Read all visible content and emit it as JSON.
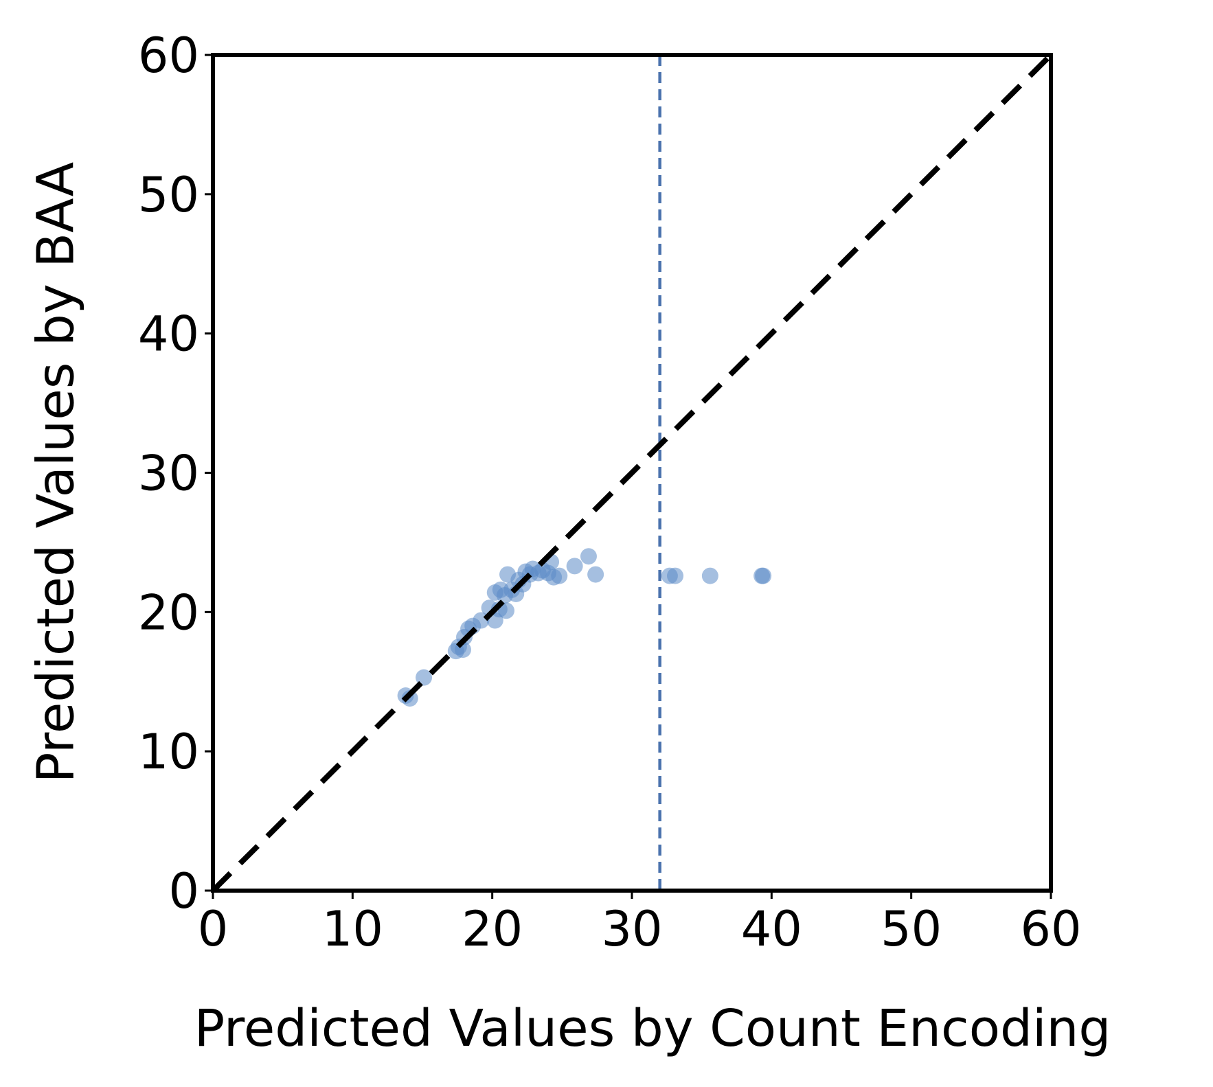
{
  "chart_data": {
    "type": "scatter",
    "title": "",
    "xlabel": "Predicted Values by Count Encoding",
    "ylabel": "Predicted Values by BAA",
    "xlim": [
      0,
      60
    ],
    "ylim": [
      0,
      60
    ],
    "x_ticks": [
      0,
      10,
      20,
      30,
      40,
      50,
      60
    ],
    "y_ticks": [
      0,
      10,
      20,
      30,
      40,
      50,
      60
    ],
    "x_tick_labels": [
      "0",
      "10",
      "20",
      "30",
      "40",
      "50",
      "60"
    ],
    "y_tick_labels": [
      "0",
      "10",
      "20",
      "30",
      "40",
      "50",
      "60"
    ],
    "grid": false,
    "reference_lines": {
      "identity_diagonal": {
        "from": [
          0,
          0
        ],
        "to": [
          60,
          60
        ],
        "style": "dashed",
        "color": "#000000"
      },
      "vertical_threshold": {
        "x": 32,
        "style": "dashed",
        "color": "#4a72ad"
      }
    },
    "series": [
      {
        "color": "#5b8ac6",
        "opacity": 0.55,
        "points": [
          [
            13.8,
            14.0
          ],
          [
            14.1,
            13.8
          ],
          [
            15.1,
            15.3
          ],
          [
            17.4,
            17.2
          ],
          [
            17.6,
            17.5
          ],
          [
            17.9,
            17.3
          ],
          [
            18.0,
            18.2
          ],
          [
            18.3,
            18.8
          ],
          [
            18.6,
            19.0
          ],
          [
            19.2,
            19.4
          ],
          [
            19.8,
            20.3
          ],
          [
            20.2,
            19.4
          ],
          [
            20.2,
            21.4
          ],
          [
            20.5,
            20.2
          ],
          [
            20.6,
            21.6
          ],
          [
            20.9,
            21.2
          ],
          [
            21.0,
            20.1
          ],
          [
            21.1,
            22.7
          ],
          [
            21.4,
            21.6
          ],
          [
            21.7,
            21.3
          ],
          [
            21.9,
            22.3
          ],
          [
            22.2,
            22.0
          ],
          [
            22.4,
            22.9
          ],
          [
            22.7,
            22.7
          ],
          [
            22.9,
            23.1
          ],
          [
            23.3,
            22.8
          ],
          [
            23.6,
            23.0
          ],
          [
            24.0,
            22.8
          ],
          [
            24.2,
            23.6
          ],
          [
            24.4,
            22.5
          ],
          [
            24.8,
            22.6
          ],
          [
            25.9,
            23.3
          ],
          [
            26.9,
            24.0
          ],
          [
            27.4,
            22.7
          ],
          [
            32.7,
            22.6
          ],
          [
            33.1,
            22.6
          ],
          [
            35.6,
            22.6
          ],
          [
            39.3,
            22.6
          ],
          [
            39.4,
            22.6
          ]
        ]
      }
    ]
  }
}
